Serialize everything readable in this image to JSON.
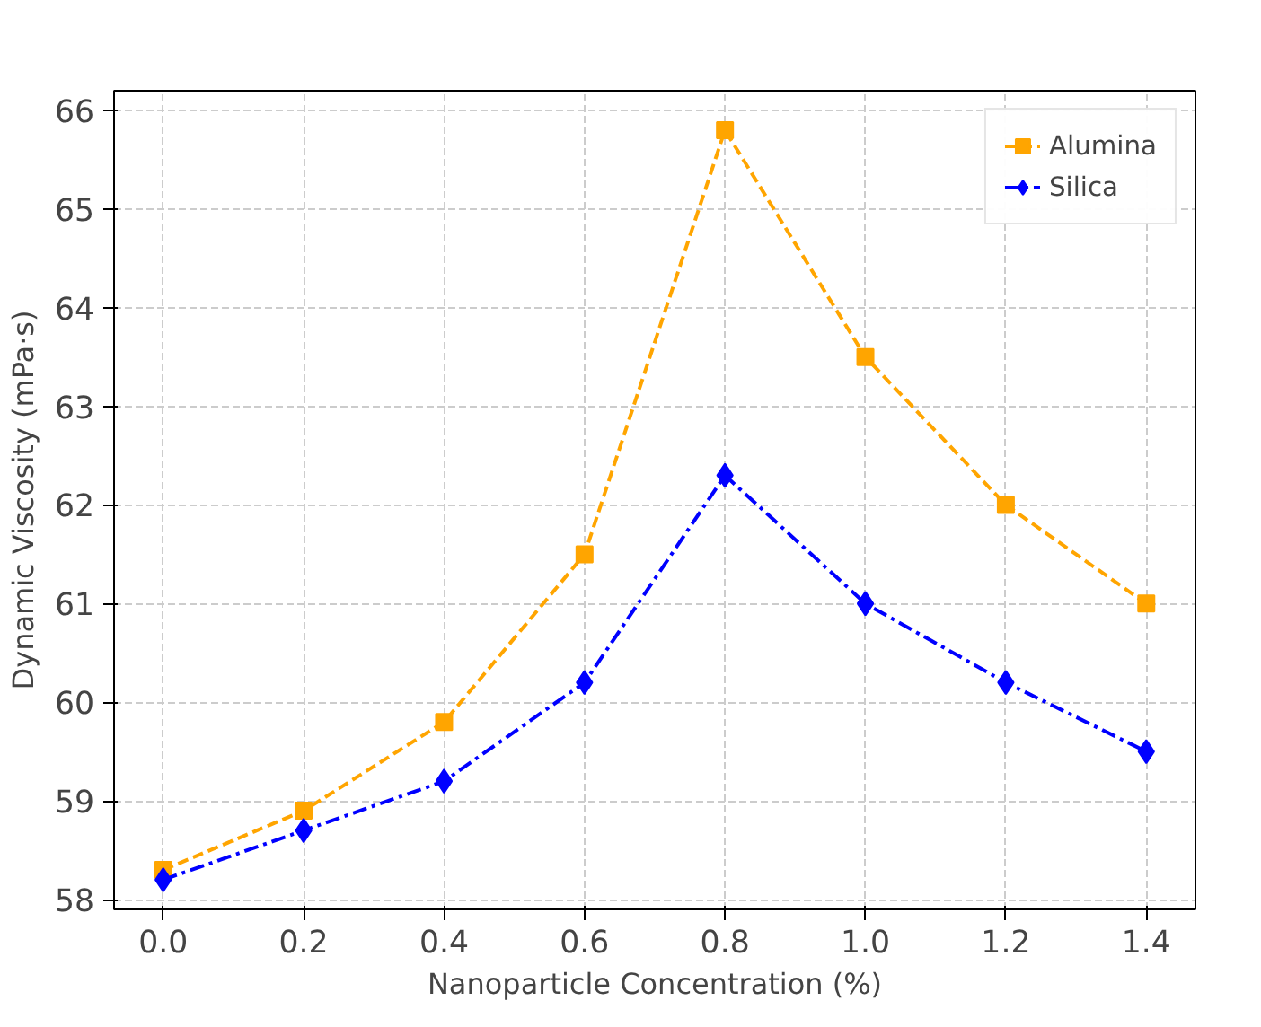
{
  "chart_data": {
    "type": "line",
    "xlabel": "Nanoparticle Concentration (%)",
    "ylabel": "Dynamic Viscosity (mPa·s)",
    "x": [
      0.0,
      0.2,
      0.4,
      0.6,
      0.8,
      1.0,
      1.2,
      1.4
    ],
    "series": [
      {
        "name": "Alumina",
        "color": "#ffa500",
        "marker": "square",
        "line_style": "dashed",
        "values": [
          58.3,
          58.9,
          59.8,
          61.5,
          65.8,
          63.5,
          62.0,
          61.0
        ]
      },
      {
        "name": "Silica",
        "color": "#0000ff",
        "marker": "diamond",
        "line_style": "dashdot",
        "values": [
          58.2,
          58.7,
          59.2,
          60.2,
          62.3,
          61.0,
          60.2,
          59.5
        ]
      }
    ],
    "xlim": [
      -0.07,
      1.47
    ],
    "ylim": [
      57.9,
      66.2
    ],
    "xticks": [
      {
        "value": 0.0,
        "label": "0.0"
      },
      0.2,
      0.4,
      0.6,
      0.8,
      {
        "value": 1.0,
        "label": "1.0"
      },
      1.2,
      1.4
    ],
    "yticks": [
      58,
      59,
      60,
      61,
      62,
      63,
      64,
      65,
      66
    ],
    "grid": true,
    "legend": "top right"
  }
}
